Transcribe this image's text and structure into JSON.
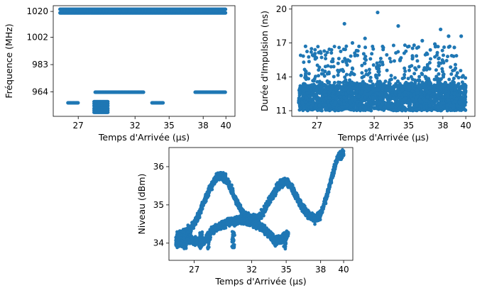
{
  "chart_data": [
    {
      "id": "frequency",
      "type": "scatter",
      "xlabel": "Temps d'Arrivée (µs)",
      "ylabel": "Fréquence (MHz)",
      "xticks": [
        27,
        32,
        35,
        38,
        40
      ],
      "yticks": [
        964,
        983,
        1002,
        1020
      ],
      "xlim": [
        24.8,
        40.8
      ],
      "ylim": [
        947,
        1024
      ],
      "color": "#1f77b4",
      "bands": [
        {
          "x_start": 25.4,
          "x_end": 40.0,
          "y": 1021.5,
          "step": 0.08
        },
        {
          "x_start": 25.4,
          "x_end": 40.0,
          "y": 1019.0,
          "step": 0.08
        },
        {
          "x_start": 28.5,
          "x_end": 32.8,
          "y": 963.8,
          "step": 0.08
        },
        {
          "x_start": 37.3,
          "x_end": 40.0,
          "y": 963.8,
          "step": 0.08
        },
        {
          "x_start": 26.1,
          "x_end": 27.0,
          "y": 956.4,
          "step": 0.08
        },
        {
          "x_start": 33.5,
          "x_end": 34.5,
          "y": 956.4,
          "step": 0.08
        },
        {
          "x_start": 28.4,
          "x_end": 29.6,
          "y": 957.2,
          "step": 0.08
        },
        {
          "x_start": 28.4,
          "x_end": 29.6,
          "y": 955.8,
          "step": 0.08
        },
        {
          "x_start": 28.4,
          "x_end": 29.6,
          "y": 954.3,
          "step": 0.08
        },
        {
          "x_start": 28.4,
          "x_end": 29.6,
          "y": 952.5,
          "step": 0.08
        },
        {
          "x_start": 28.4,
          "x_end": 29.6,
          "y": 951.2,
          "step": 0.08
        },
        {
          "x_start": 28.4,
          "x_end": 29.6,
          "y": 949.8,
          "step": 0.08
        }
      ]
    },
    {
      "id": "pulse-width",
      "type": "scatter",
      "xlabel": "Temps d'Arrivée (µs)",
      "ylabel": "Durée d'Impulsion (ns)",
      "xticks": [
        27,
        32,
        35,
        38,
        40
      ],
      "yticks": [
        11,
        14,
        17,
        20
      ],
      "xlim": [
        24.8,
        40.8
      ],
      "ylim": [
        10.5,
        20.3
      ],
      "color": "#1f77b4",
      "x_range": [
        25.4,
        40.0
      ],
      "dense_band": [
        11.0,
        13.2
      ],
      "tail_max": 16.8,
      "count": 2600,
      "outliers": [
        {
          "x": 32.3,
          "y": 19.7
        },
        {
          "x": 29.4,
          "y": 18.7
        },
        {
          "x": 34.1,
          "y": 18.5
        },
        {
          "x": 37.8,
          "y": 18.2
        },
        {
          "x": 38.5,
          "y": 17.6
        },
        {
          "x": 39.6,
          "y": 17.6
        },
        {
          "x": 36.2,
          "y": 17.2
        },
        {
          "x": 31.2,
          "y": 17.4
        },
        {
          "x": 30.1,
          "y": 17.0
        },
        {
          "x": 37.3,
          "y": 16.9
        },
        {
          "x": 26.0,
          "y": 16.7
        },
        {
          "x": 39.0,
          "y": 16.6
        }
      ]
    },
    {
      "id": "level",
      "type": "scatter",
      "xlabel": "Temps d'Arrivée (µs)",
      "ylabel": "Niveau (dBm)",
      "xticks": [
        27,
        32,
        35,
        38,
        40
      ],
      "yticks": [
        34,
        35,
        36
      ],
      "xlim": [
        24.8,
        40.8
      ],
      "ylim": [
        33.55,
        36.5
      ],
      "color": "#1f77b4",
      "spread": 0.1,
      "upper_curve": [
        {
          "x": 25.4,
          "y": 34.15
        },
        {
          "x": 26.0,
          "y": 34.25
        },
        {
          "x": 26.6,
          "y": 34.35
        },
        {
          "x": 27.2,
          "y": 34.6
        },
        {
          "x": 27.8,
          "y": 35.05
        },
        {
          "x": 28.4,
          "y": 35.45
        },
        {
          "x": 28.9,
          "y": 35.7
        },
        {
          "x": 29.3,
          "y": 35.78
        },
        {
          "x": 29.7,
          "y": 35.7
        },
        {
          "x": 30.2,
          "y": 35.45
        },
        {
          "x": 30.7,
          "y": 35.05
        },
        {
          "x": 31.2,
          "y": 34.8
        },
        {
          "x": 31.8,
          "y": 34.65
        },
        {
          "x": 32.4,
          "y": 34.62
        },
        {
          "x": 33.0,
          "y": 34.8
        },
        {
          "x": 33.5,
          "y": 35.1
        },
        {
          "x": 34.0,
          "y": 35.35
        },
        {
          "x": 34.5,
          "y": 35.55
        },
        {
          "x": 35.0,
          "y": 35.6
        },
        {
          "x": 35.5,
          "y": 35.45
        },
        {
          "x": 36.0,
          "y": 35.15
        },
        {
          "x": 36.5,
          "y": 34.9
        },
        {
          "x": 37.0,
          "y": 34.72
        },
        {
          "x": 37.5,
          "y": 34.62
        },
        {
          "x": 38.0,
          "y": 34.75
        },
        {
          "x": 38.5,
          "y": 35.2
        },
        {
          "x": 39.0,
          "y": 35.75
        },
        {
          "x": 39.5,
          "y": 36.25
        },
        {
          "x": 40.0,
          "y": 36.35
        }
      ],
      "lower_curve": [
        {
          "x": 25.4,
          "y": 34.0
        },
        {
          "x": 26.0,
          "y": 34.0
        },
        {
          "x": 26.6,
          "y": 34.1
        },
        {
          "x": 27.2,
          "y": 34.05
        },
        {
          "x": 27.5,
          "y": 34.0
        },
        {
          "x": 28.0,
          "y": 34.1
        },
        {
          "x": 28.5,
          "y": 34.3
        },
        {
          "x": 29.2,
          "y": 34.45
        },
        {
          "x": 30.0,
          "y": 34.55
        },
        {
          "x": 31.0,
          "y": 34.6
        },
        {
          "x": 32.0,
          "y": 34.55
        },
        {
          "x": 33.0,
          "y": 34.4
        },
        {
          "x": 33.5,
          "y": 34.25
        },
        {
          "x": 34.0,
          "y": 34.05
        },
        {
          "x": 34.5,
          "y": 34.1
        },
        {
          "x": 35.0,
          "y": 34.2
        },
        {
          "x": 35.2,
          "y": 34.25
        }
      ]
    }
  ]
}
